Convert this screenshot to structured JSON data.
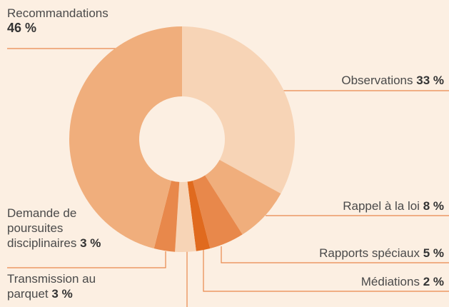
{
  "chart_data": {
    "type": "donut",
    "categories": [
      "Observations",
      "Rappel à la loi",
      "Rapports spéciaux",
      "Médiations",
      "Transmission au parquet",
      "Demande de poursuites disciplinaires",
      "Recommandations"
    ],
    "values": [
      33,
      8,
      5,
      2,
      3,
      3,
      46
    ],
    "value_labels": [
      "33 %",
      "8 %",
      "5 %",
      "2 %",
      "3 %",
      "3 %",
      "46 %"
    ],
    "colors": [
      "#f7d4b6",
      "#f0ae7c",
      "#e8884b",
      "#e06a1e",
      "#f7d4b6",
      "#e8884b",
      "#f0ae7c"
    ]
  }
}
